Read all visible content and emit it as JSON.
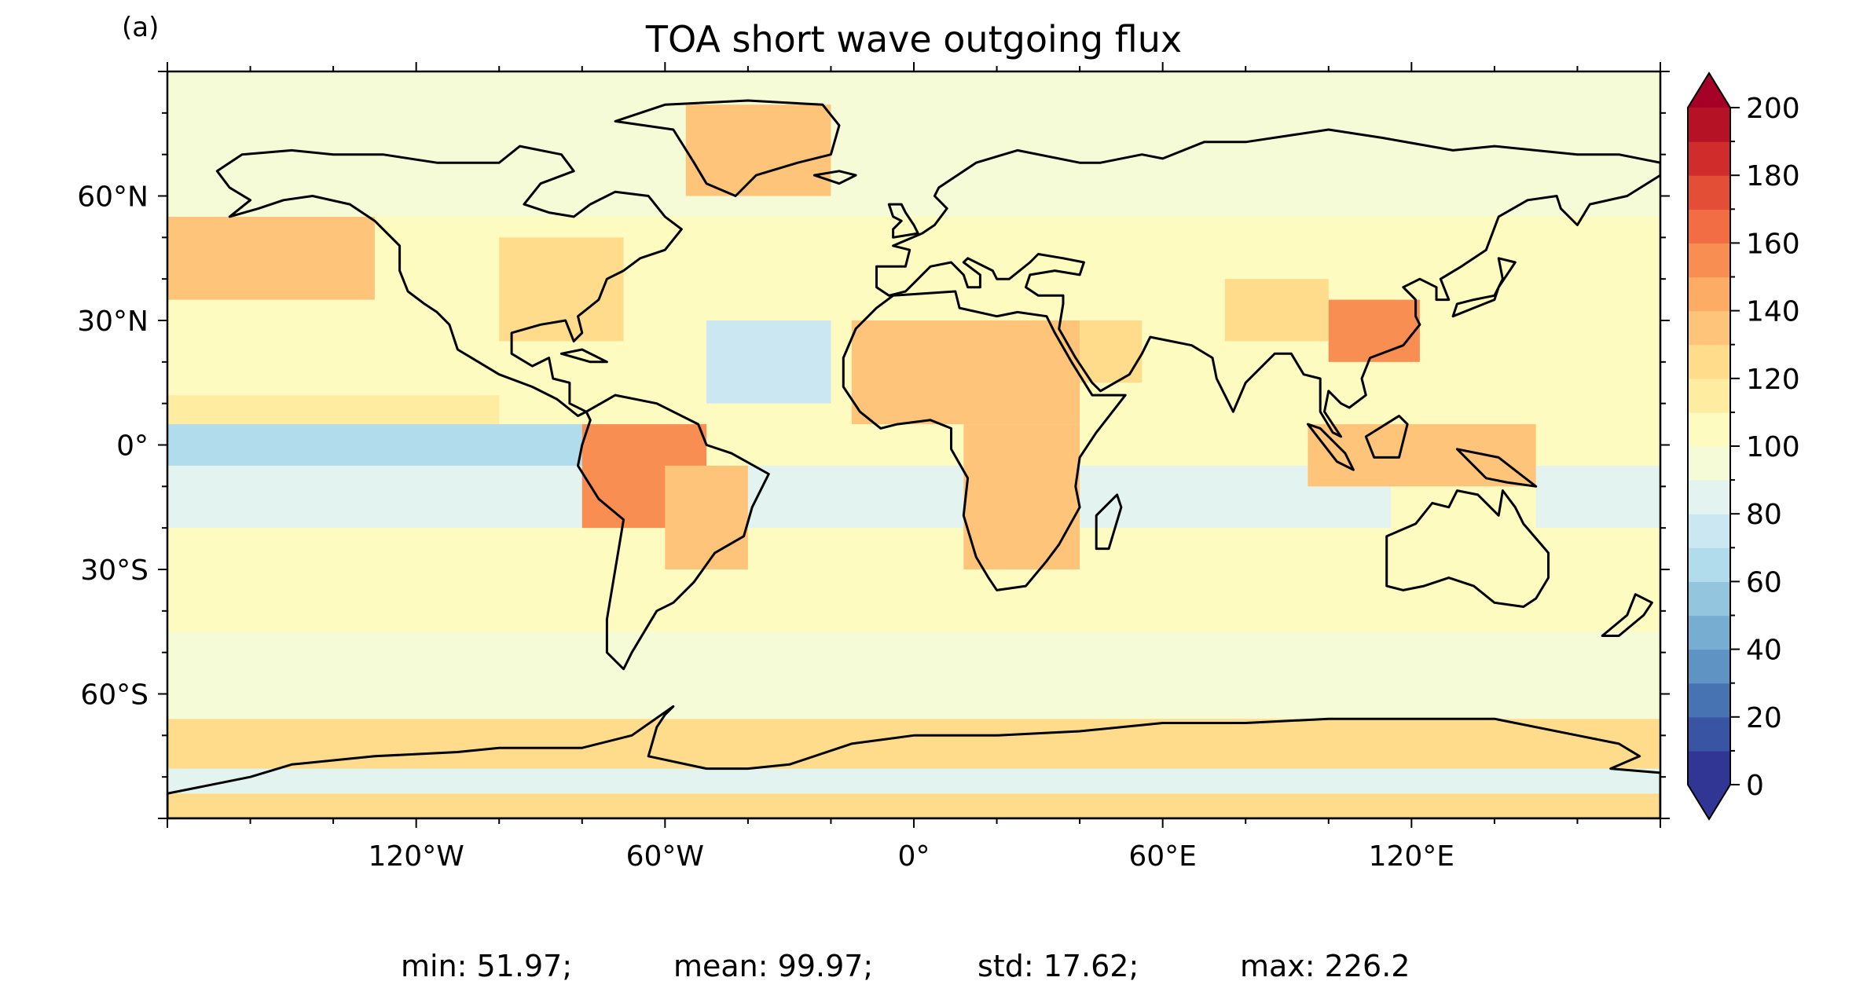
{
  "panel_label": "(a)",
  "title": "TOA short wave outgoing flux",
  "axes": {
    "x_ticks": [
      {
        "lon": -120,
        "label": "120°W"
      },
      {
        "lon": -60,
        "label": "60°W"
      },
      {
        "lon": 0,
        "label": "0°"
      },
      {
        "lon": 60,
        "label": "60°E"
      },
      {
        "lon": 120,
        "label": "120°E"
      }
    ],
    "y_ticks": [
      {
        "lat": 60,
        "label": "60°N"
      },
      {
        "lat": 30,
        "label": "30°N"
      },
      {
        "lat": 0,
        "label": "0°"
      },
      {
        "lat": -30,
        "label": "30°S"
      },
      {
        "lat": -60,
        "label": "60°S"
      }
    ],
    "lon_range": [
      -180,
      180
    ],
    "lat_range": [
      -90,
      90
    ]
  },
  "colorbar": {
    "min": 0,
    "max": 200,
    "step": 10,
    "ticks": [
      0,
      20,
      40,
      60,
      80,
      100,
      120,
      140,
      160,
      180,
      200
    ],
    "extend": "both",
    "colors": [
      "#313695",
      "#3a54a4",
      "#4873b3",
      "#5e93c4",
      "#76add0",
      "#93c6de",
      "#b1dceb",
      "#cbe8f2",
      "#e2f3f0",
      "#f5fbd6",
      "#fefbc0",
      "#feeca0",
      "#fedc8b",
      "#fec47a",
      "#fdac66",
      "#f98e52",
      "#f26c44",
      "#e34e36",
      "#d02c2b",
      "#b51226"
    ],
    "under_color": "#313695",
    "over_color": "#a50026"
  },
  "stats": {
    "min": "min: 51.97;",
    "mean": "mean: 99.97;",
    "std": "std: 17.62;",
    "max": "max: 226.2"
  },
  "chart_data": {
    "type": "heatmap",
    "title": "TOA short wave outgoing flux",
    "xlabel": "",
    "ylabel": "",
    "x_range_lon": [
      -180,
      180
    ],
    "y_range_lat": [
      -90,
      90
    ],
    "value_range": [
      0,
      200
    ],
    "legend_placement": "right",
    "grid": false,
    "regions": [
      {
        "lat": [
          -90,
          -66
        ],
        "lon": [
          -180,
          180
        ],
        "value": 125
      },
      {
        "lat": [
          -84,
          -78
        ],
        "lon": [
          -180,
          180
        ],
        "value": 85
      },
      {
        "lat": [
          -66,
          -45
        ],
        "lon": [
          -180,
          180
        ],
        "value": 92
      },
      {
        "lat": [
          -45,
          -20
        ],
        "lon": [
          -180,
          180
        ],
        "value": 100
      },
      {
        "lat": [
          -20,
          -5
        ],
        "lon": [
          -180,
          180
        ],
        "value": 85
      },
      {
        "lat": [
          -5,
          5
        ],
        "lon": [
          -180,
          -80
        ],
        "value": 65
      },
      {
        "lat": [
          5,
          12
        ],
        "lon": [
          -180,
          -100
        ],
        "value": 115
      },
      {
        "lat": [
          12,
          35
        ],
        "lon": [
          -180,
          180
        ],
        "value": 100
      },
      {
        "lat": [
          35,
          55
        ],
        "lon": [
          -180,
          -130
        ],
        "value": 130
      },
      {
        "lat": [
          55,
          90
        ],
        "lon": [
          -180,
          180
        ],
        "value": 95
      },
      {
        "lat": [
          10,
          30
        ],
        "lon": [
          -50,
          -20
        ],
        "value": 72
      },
      {
        "lat": [
          60,
          82
        ],
        "lon": [
          -55,
          -20
        ],
        "value": 130
      },
      {
        "lat": [
          25,
          50
        ],
        "lon": [
          -100,
          -70
        ],
        "value": 125
      },
      {
        "lat": [
          -20,
          5
        ],
        "lon": [
          -80,
          -50
        ],
        "value": 150
      },
      {
        "lat": [
          -30,
          -5
        ],
        "lon": [
          -60,
          -40
        ],
        "value": 135
      },
      {
        "lat": [
          5,
          30
        ],
        "lon": [
          -15,
          40
        ],
        "value": 130
      },
      {
        "lat": [
          -30,
          5
        ],
        "lon": [
          12,
          40
        ],
        "value": 130
      },
      {
        "lat": [
          15,
          30
        ],
        "lon": [
          40,
          55
        ],
        "value": 125
      },
      {
        "lat": [
          20,
          35
        ],
        "lon": [
          100,
          122
        ],
        "value": 150
      },
      {
        "lat": [
          25,
          40
        ],
        "lon": [
          75,
          100
        ],
        "value": 125
      },
      {
        "lat": [
          -10,
          5
        ],
        "lon": [
          95,
          150
        ],
        "value": 130
      },
      {
        "lat": [
          -40,
          -10
        ],
        "lon": [
          115,
          150
        ],
        "value": 108
      }
    ]
  }
}
